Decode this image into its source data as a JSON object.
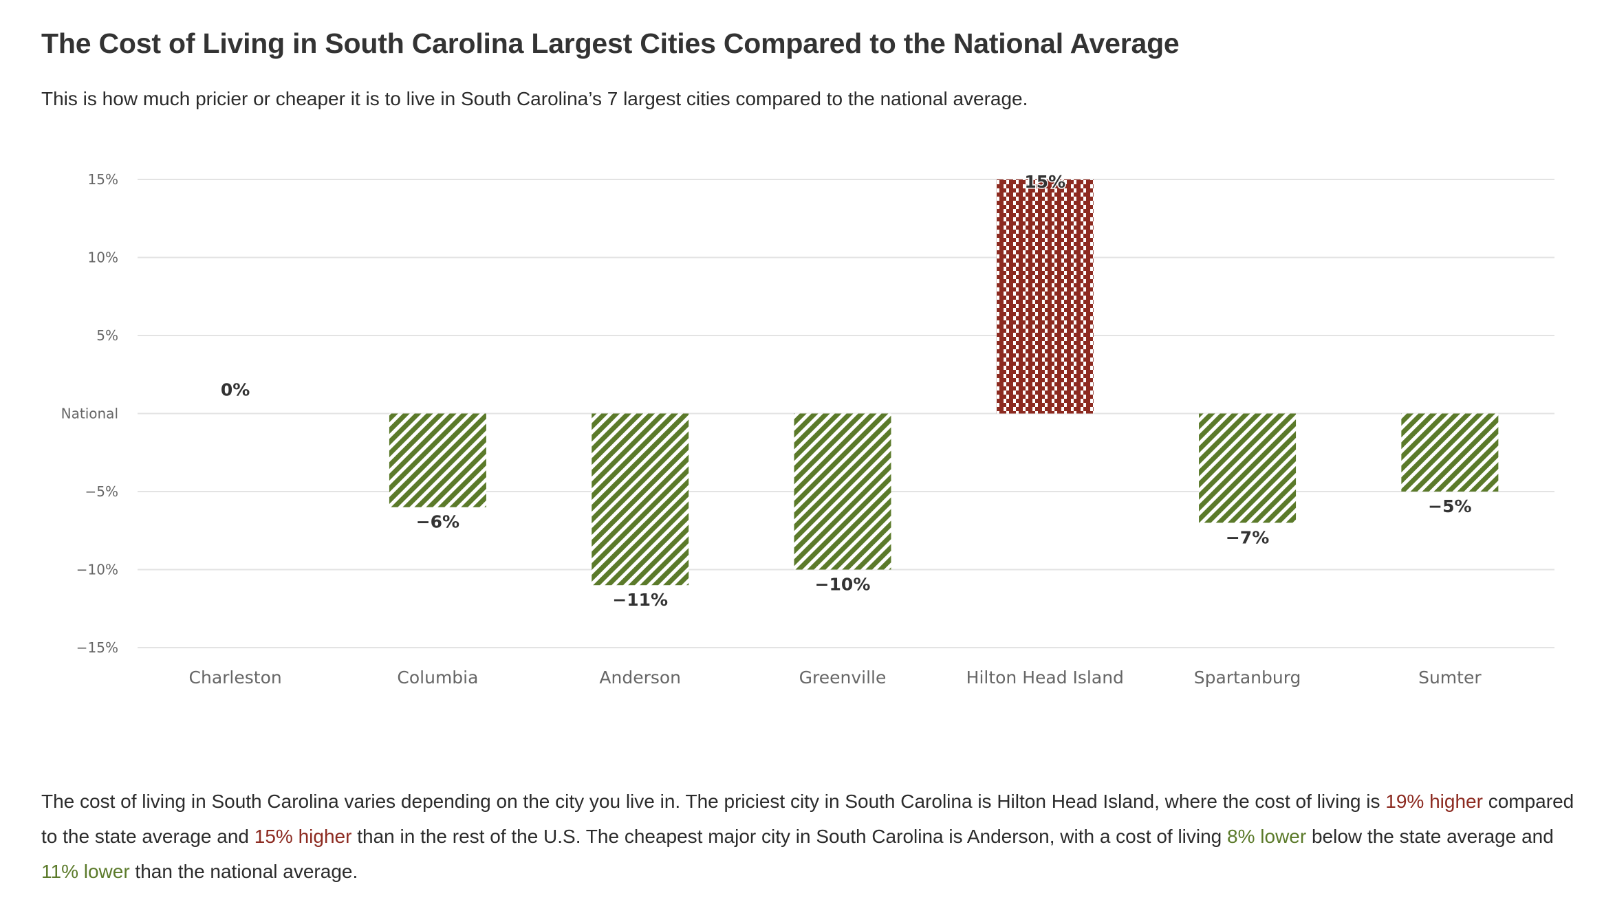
{
  "header": {
    "title": "The Cost of Living in South Carolina Largest Cities Compared to the National Average",
    "subtitle": "This is how much pricier or cheaper it is to live in South Carolina’s 7 largest cities compared to the national average."
  },
  "colors": {
    "higher": "#8c2a20",
    "lower": "#5b7a2a",
    "grid": "#e3e3e3"
  },
  "chart_data": {
    "type": "bar",
    "title": "",
    "xlabel": "",
    "ylabel": "",
    "categories": [
      "Charleston",
      "Columbia",
      "Anderson",
      "Greenville",
      "Hilton Head Island",
      "Spartanburg",
      "Sumter"
    ],
    "values": [
      0,
      -6,
      -11,
      -10,
      15,
      -7,
      -5
    ],
    "data_labels": [
      "0%",
      "−6%",
      "−11%",
      "−10%",
      "15%",
      "−7%",
      "−5%"
    ],
    "ylim": [
      -15,
      15
    ],
    "yticks": [
      15,
      10,
      5,
      0,
      -5,
      -10,
      -15
    ],
    "ytick_labels": [
      "15%",
      "10%",
      "5%",
      "National",
      "−5%",
      "−10%",
      "−15%"
    ],
    "grid": true,
    "legend": "none",
    "bar_style": {
      "positive": "red dashed-vertical pattern",
      "negative": "green diagonal hatch"
    }
  },
  "paragraph": {
    "segments": [
      {
        "text": "The cost of living in South Carolina varies depending on the city you live in. The priciest city in South Carolina is Hilton Head Island, where the cost of living is ",
        "style": "normal"
      },
      {
        "text": "19% higher",
        "style": "hi"
      },
      {
        "text": " compared to the state average and ",
        "style": "normal"
      },
      {
        "text": "15% higher",
        "style": "hi"
      },
      {
        "text": " than in the rest of the U.S. The cheapest major city in South Carolina is Anderson, with a cost of living ",
        "style": "normal"
      },
      {
        "text": "8% lower",
        "style": "lo"
      },
      {
        "text": " below the state average and ",
        "style": "normal"
      },
      {
        "text": "11% lower",
        "style": "lo"
      },
      {
        "text": " than the national average.",
        "style": "normal"
      }
    ]
  }
}
